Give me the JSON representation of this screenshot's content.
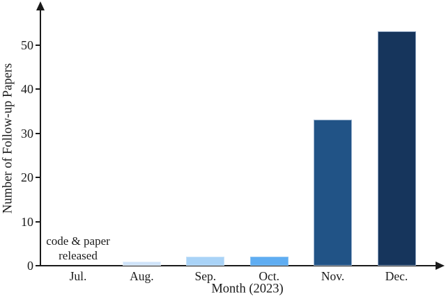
{
  "chart_data": {
    "type": "bar",
    "title": "",
    "xlabel": "Month (2023)",
    "ylabel": "Number of Follow-up Papers",
    "categories": [
      "Jul.",
      "Aug.",
      "Sep.",
      "Oct.",
      "Nov.",
      "Dec."
    ],
    "values": [
      0,
      1,
      2,
      2,
      33,
      53
    ],
    "bar_colors": [
      "#cfe3f9",
      "#cfe3f9",
      "#a9d3f7",
      "#5fadf2",
      "#215386",
      "#16355c"
    ],
    "bar_edge_colors": [
      "#e8f2fc",
      "#e8f2fc",
      "#c8e2f8",
      "#8ec4f0",
      "#9bb3cf",
      "#91a7c4"
    ],
    "yticks": [
      0,
      10,
      20,
      30,
      40,
      50
    ],
    "ylim": [
      0,
      59
    ],
    "grid": false,
    "legend": null,
    "axis_color": "#1a1a1a",
    "text_color": "#1a1a1a",
    "annotation": {
      "lines": [
        "code & paper",
        "released"
      ],
      "x_category": "Jul."
    }
  }
}
